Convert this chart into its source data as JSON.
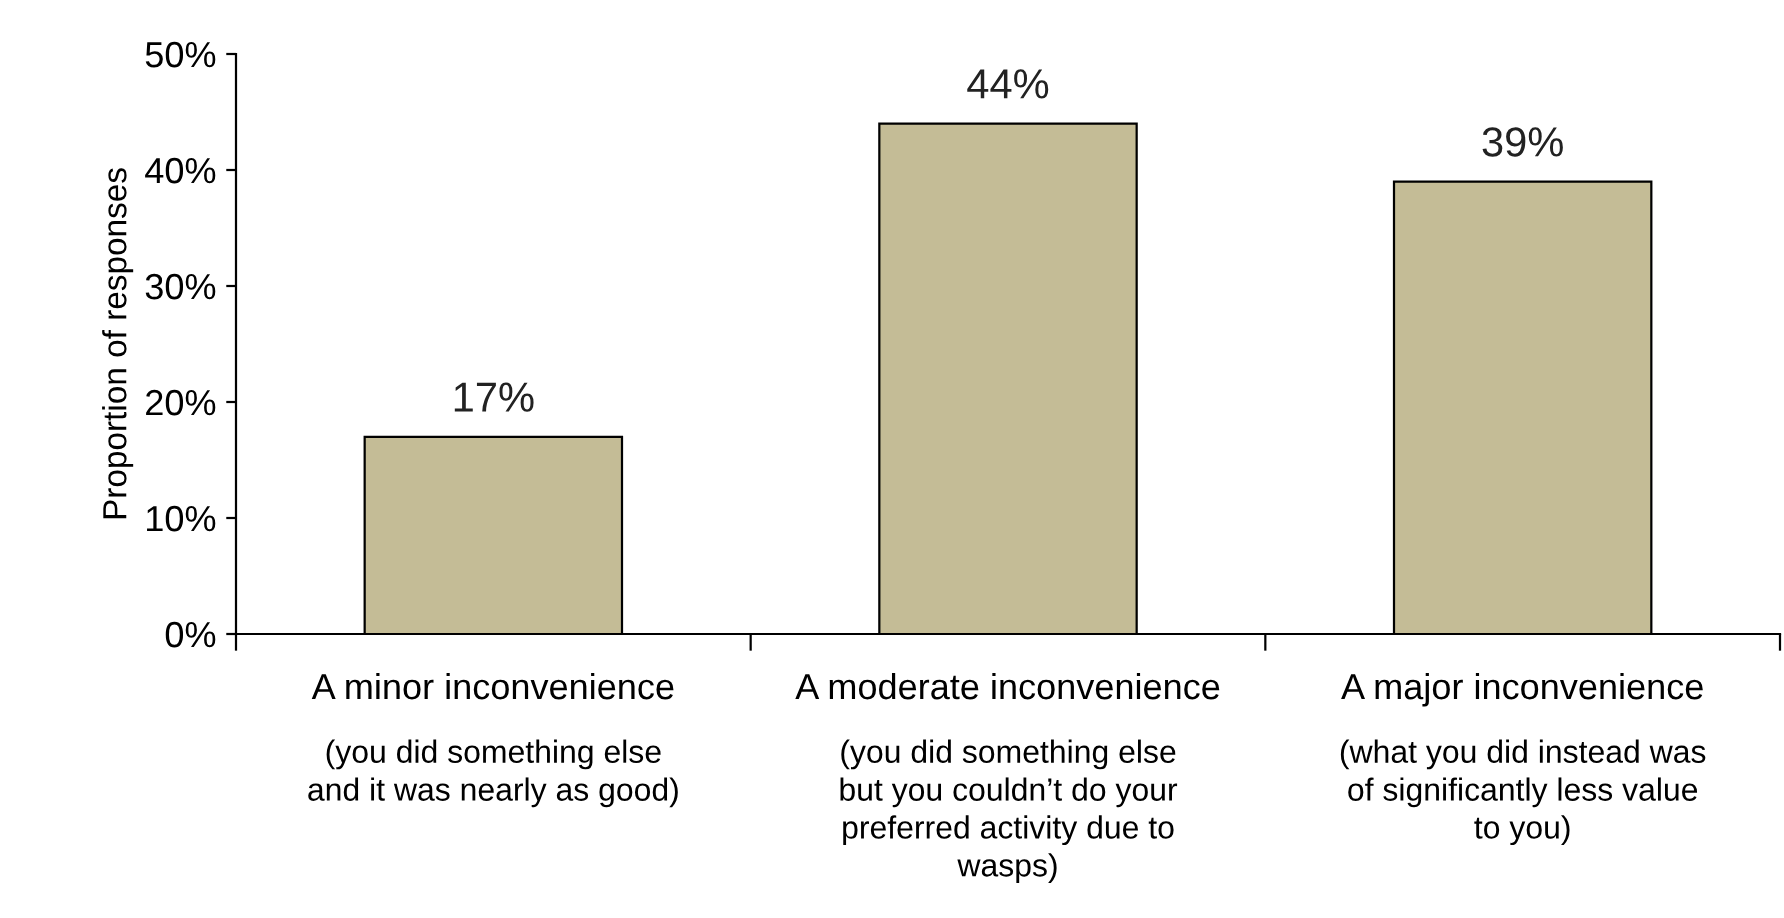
{
  "chart_data": {
    "type": "bar",
    "ylabel": "Proportion of responses",
    "categories": [
      "A minor inconvenience\n(you did something else\nand it was nearly as good)",
      "A moderate inconvenience\n(you did something else\nbut you couldn’t do your\npreferred activity due to\nwasps)",
      "A major inconvenience\n(what you did instead was\nof significantly less value\nto you)"
    ],
    "values": [
      17,
      44,
      39
    ],
    "value_labels": [
      "17%",
      "44%",
      "39%"
    ],
    "color": "#c4bc96",
    "ylim": [
      0,
      50
    ],
    "yticks": [
      {
        "value": 0,
        "label": "0%"
      },
      {
        "value": 10,
        "label": "10%"
      },
      {
        "value": 20,
        "label": "20%"
      },
      {
        "value": 30,
        "label": "30%"
      },
      {
        "value": 40,
        "label": "40%"
      },
      {
        "value": 50,
        "label": "50%"
      }
    ],
    "grid": false,
    "legend": false
  }
}
